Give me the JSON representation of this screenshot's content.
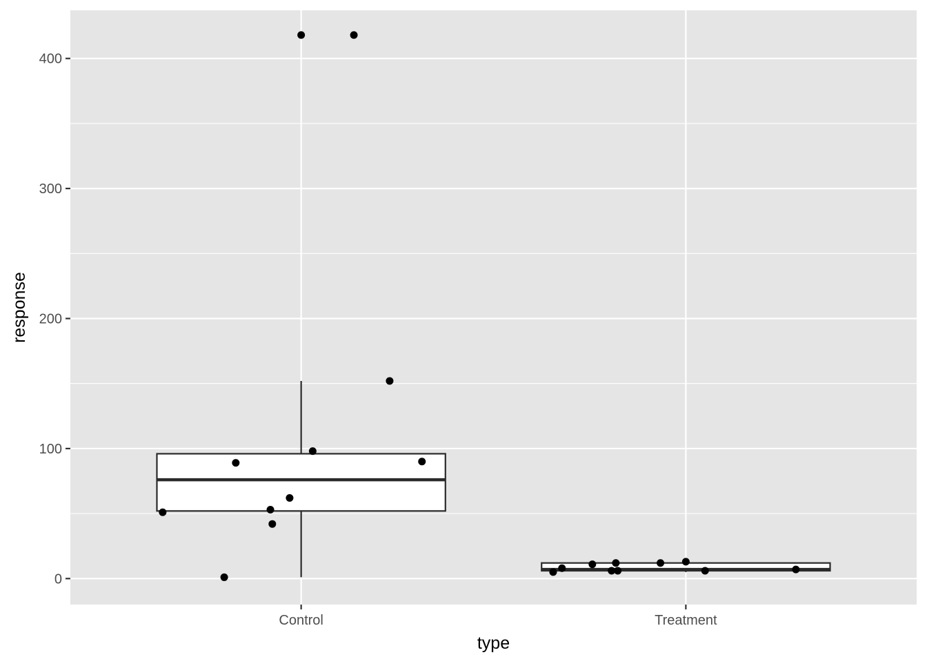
{
  "chart_data": {
    "type": "boxplot",
    "xlabel": "type",
    "ylabel": "response",
    "categories": [
      "Control",
      "Treatment"
    ],
    "ylim": [
      -20,
      437
    ],
    "y_ticks": [
      0,
      100,
      200,
      300,
      400
    ],
    "grid": true,
    "legend": "none",
    "colors": {
      "panel_background": "#e5e5e5",
      "grid_line": "#ffffff",
      "box_fill": "#ffffff",
      "box_stroke": "#2a2a2a",
      "point": "#000000"
    },
    "boxes": [
      {
        "category": "Control",
        "whisker_low": 1,
        "q1": 52,
        "median": 76,
        "q3": 96,
        "whisker_high": 152
      },
      {
        "category": "Treatment",
        "whisker_low": 5,
        "q1": 6,
        "median": 7,
        "q3": 12,
        "whisker_high": 13
      }
    ],
    "points": [
      {
        "category": "Control",
        "jitter": -0.36,
        "y": 51
      },
      {
        "category": "Control",
        "jitter": -0.2,
        "y": 1
      },
      {
        "category": "Control",
        "jitter": -0.17,
        "y": 89
      },
      {
        "category": "Control",
        "jitter": -0.08,
        "y": 53
      },
      {
        "category": "Control",
        "jitter": -0.075,
        "y": 42
      },
      {
        "category": "Control",
        "jitter": -0.03,
        "y": 62
      },
      {
        "category": "Control",
        "jitter": 0.0,
        "y": 418
      },
      {
        "category": "Control",
        "jitter": 0.03,
        "y": 98
      },
      {
        "category": "Control",
        "jitter": 0.137,
        "y": 418
      },
      {
        "category": "Control",
        "jitter": 0.23,
        "y": 152
      },
      {
        "category": "Control",
        "jitter": 0.314,
        "y": 90
      },
      {
        "category": "Treatment",
        "jitter": -0.345,
        "y": 5
      },
      {
        "category": "Treatment",
        "jitter": -0.322,
        "y": 8
      },
      {
        "category": "Treatment",
        "jitter": -0.243,
        "y": 11
      },
      {
        "category": "Treatment",
        "jitter": -0.193,
        "y": 6
      },
      {
        "category": "Treatment",
        "jitter": -0.182,
        "y": 12
      },
      {
        "category": "Treatment",
        "jitter": -0.177,
        "y": 6
      },
      {
        "category": "Treatment",
        "jitter": -0.066,
        "y": 12
      },
      {
        "category": "Treatment",
        "jitter": 0.0,
        "y": 13
      },
      {
        "category": "Treatment",
        "jitter": 0.05,
        "y": 6
      },
      {
        "category": "Treatment",
        "jitter": 0.286,
        "y": 7
      }
    ]
  }
}
